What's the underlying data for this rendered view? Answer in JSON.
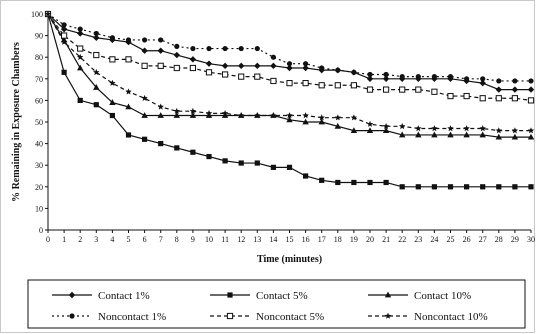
{
  "chart_data": {
    "type": "line",
    "title": "",
    "xlabel": "Time (minutes)",
    "ylabel": "% Remaining in Exposure Chambers",
    "xlim": [
      0,
      30
    ],
    "ylim": [
      0,
      100
    ],
    "x_ticks": [
      0,
      1,
      2,
      3,
      4,
      5,
      6,
      7,
      8,
      9,
      10,
      11,
      12,
      13,
      14,
      15,
      16,
      17,
      18,
      19,
      20,
      21,
      22,
      23,
      24,
      25,
      26,
      27,
      28,
      29,
      30
    ],
    "y_ticks": [
      0,
      10,
      20,
      30,
      40,
      50,
      60,
      70,
      80,
      90,
      100
    ],
    "grid": false,
    "legend_position": "bottom",
    "x": [
      0,
      1,
      2,
      3,
      4,
      5,
      6,
      7,
      8,
      9,
      10,
      11,
      12,
      13,
      14,
      15,
      16,
      17,
      18,
      19,
      20,
      21,
      22,
      23,
      24,
      25,
      26,
      27,
      28,
      29,
      30
    ],
    "series": [
      {
        "name": "Contact 1%",
        "line": "solid",
        "marker": "diamond",
        "values": [
          100,
          93,
          91,
          89,
          88,
          87,
          83,
          83,
          81,
          79,
          77,
          76,
          76,
          76,
          76,
          75,
          75,
          74,
          74,
          73,
          70,
          70,
          70,
          70,
          70,
          70,
          69,
          68,
          65,
          65,
          65
        ]
      },
      {
        "name": "Contact 5%",
        "line": "solid",
        "marker": "square",
        "values": [
          100,
          73,
          60,
          58,
          53,
          44,
          42,
          40,
          38,
          36,
          34,
          32,
          31,
          31,
          29,
          29,
          25,
          23,
          22,
          22,
          22,
          22,
          20,
          20,
          20,
          20,
          20,
          20,
          20,
          20,
          20
        ]
      },
      {
        "name": "Contact 10%",
        "line": "solid",
        "marker": "triangle",
        "values": [
          100,
          88,
          75,
          66,
          59,
          57,
          53,
          53,
          53,
          53,
          53,
          53,
          53,
          53,
          53,
          51,
          50,
          50,
          48,
          46,
          46,
          46,
          44,
          44,
          44,
          44,
          44,
          44,
          43,
          43,
          43
        ]
      },
      {
        "name": "Noncontact 1%",
        "line": "dotted",
        "marker": "circle",
        "values": [
          100,
          95,
          93,
          91,
          89,
          88,
          88,
          88,
          85,
          84,
          84,
          84,
          84,
          84,
          80,
          77,
          77,
          75,
          74,
          73,
          72,
          72,
          71,
          71,
          71,
          71,
          70,
          70,
          69,
          69,
          69
        ]
      },
      {
        "name": "Noncontact 5%",
        "line": "dashed",
        "marker": "open-square",
        "values": [
          100,
          90,
          84,
          81,
          79,
          79,
          76,
          76,
          75,
          75,
          73,
          72,
          71,
          71,
          69,
          68,
          68,
          67,
          67,
          67,
          65,
          65,
          65,
          65,
          64,
          62,
          62,
          61,
          61,
          61,
          60
        ]
      },
      {
        "name": "Noncontact 10%",
        "line": "dashed",
        "marker": "star",
        "values": [
          100,
          87,
          80,
          73,
          68,
          64,
          61,
          57,
          55,
          55,
          54,
          54,
          53,
          53,
          53,
          53,
          53,
          52,
          52,
          52,
          49,
          48,
          48,
          47,
          47,
          47,
          47,
          47,
          46,
          46,
          46
        ]
      }
    ]
  }
}
